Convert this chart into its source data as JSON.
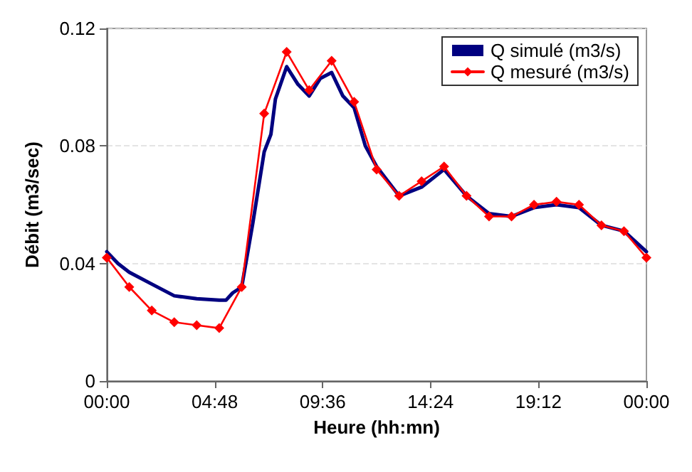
{
  "chart_data": {
    "type": "line",
    "xlabel": "Heure (hh:mn)",
    "ylabel": "Débit (m3/sec)",
    "xlim": [
      0,
      24
    ],
    "xticks": [
      {
        "value": 0,
        "label": "00:00"
      },
      {
        "value": 4.8,
        "label": "04:48"
      },
      {
        "value": 9.6,
        "label": "09:36"
      },
      {
        "value": 14.4,
        "label": "14:24"
      },
      {
        "value": 19.2,
        "label": "19:12"
      },
      {
        "value": 24,
        "label": "00:00"
      }
    ],
    "ylim": [
      0,
      0.12
    ],
    "yticks": [
      0,
      0.04,
      0.08,
      0.12
    ],
    "grid": "y",
    "legend": "top right",
    "series": [
      {
        "name": "Q simulé (m3/s)",
        "color": "#000080",
        "marker": "none",
        "x": [
          0,
          0.5,
          1,
          2,
          3,
          4,
          5,
          5.3,
          5.6,
          6,
          6.5,
          7,
          7.3,
          7.5,
          8,
          8.5,
          9,
          9.5,
          10,
          10.5,
          11,
          11.5,
          12,
          13,
          14,
          15,
          16,
          17,
          18,
          19,
          20,
          21,
          22,
          23,
          24
        ],
        "values": [
          0.044,
          0.04,
          0.037,
          0.033,
          0.029,
          0.028,
          0.0275,
          0.0275,
          0.03,
          0.032,
          0.054,
          0.078,
          0.084,
          0.096,
          0.107,
          0.101,
          0.097,
          0.103,
          0.105,
          0.097,
          0.093,
          0.08,
          0.073,
          0.063,
          0.066,
          0.072,
          0.063,
          0.057,
          0.056,
          0.059,
          0.06,
          0.059,
          0.053,
          0.051,
          0.044
        ]
      },
      {
        "name": "Q mesuré (m3/s)",
        "color": "#ff0000",
        "marker": "diamond",
        "x": [
          0,
          1,
          2,
          3,
          4,
          5,
          6,
          7,
          8,
          9,
          10,
          11,
          12,
          13,
          14,
          15,
          16,
          17,
          18,
          19,
          20,
          21,
          22,
          23,
          24
        ],
        "values": [
          0.042,
          0.032,
          0.024,
          0.02,
          0.019,
          0.018,
          0.032,
          0.091,
          0.112,
          0.099,
          0.109,
          0.095,
          0.072,
          0.063,
          0.068,
          0.073,
          0.063,
          0.056,
          0.056,
          0.06,
          0.061,
          0.06,
          0.053,
          0.051,
          0.042
        ]
      }
    ]
  }
}
